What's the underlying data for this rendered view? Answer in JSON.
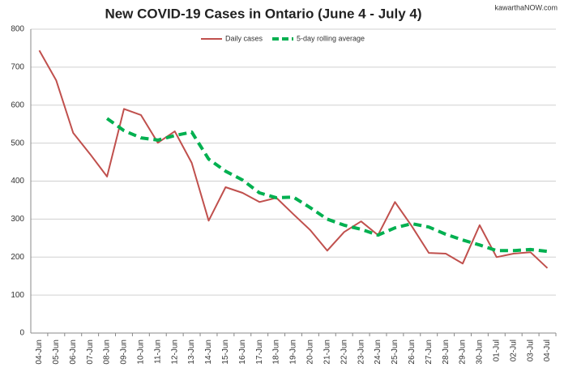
{
  "chart_data": {
    "type": "line",
    "title": "New COVID-19 Cases in Ontario (June 4 - July 4)",
    "watermark": "kawarthaNOW.com",
    "categories": [
      "04-Jun",
      "05-Jun",
      "06-Jun",
      "07-Jun",
      "08-Jun",
      "09-Jun",
      "10-Jun",
      "11-Jun",
      "12-Jun",
      "13-Jun",
      "14-Jun",
      "15-Jun",
      "16-Jun",
      "17-Jun",
      "18-Jun",
      "19-Jun",
      "20-Jun",
      "21-Jun",
      "22-Jun",
      "23-Jun",
      "24-Jun",
      "25-Jun",
      "26-Jun",
      "27-Jun",
      "28-Jun",
      "29-Jun",
      "30-Jun",
      "01-Jul",
      "02-Jul",
      "03-Jul",
      "04-Jul"
    ],
    "series": [
      {
        "name": "Daily cases",
        "color": "#c0504d",
        "dashed": false,
        "values": [
          744,
          665,
          527,
          471,
          412,
          590,
          574,
          501,
          531,
          448,
          296,
          384,
          369,
          345,
          356,
          313,
          271,
          217,
          266,
          294,
          258,
          345,
          281,
          211,
          209,
          183,
          284,
          200,
          209,
          213,
          171
        ]
      },
      {
        "name": "5-day rolling average",
        "color": "#00b050",
        "dashed": true,
        "values": [
          null,
          null,
          null,
          null,
          565,
          533,
          514,
          508,
          520,
          529,
          458,
          426,
          403,
          369,
          356,
          358,
          330,
          300,
          284,
          273,
          258,
          277,
          288,
          279,
          260,
          245,
          232,
          217,
          217,
          220,
          215
        ]
      }
    ],
    "ylim": [
      0,
      800
    ],
    "yticks": [
      0,
      100,
      200,
      300,
      400,
      500,
      600,
      700,
      800
    ],
    "grid": true,
    "legend": "top"
  }
}
